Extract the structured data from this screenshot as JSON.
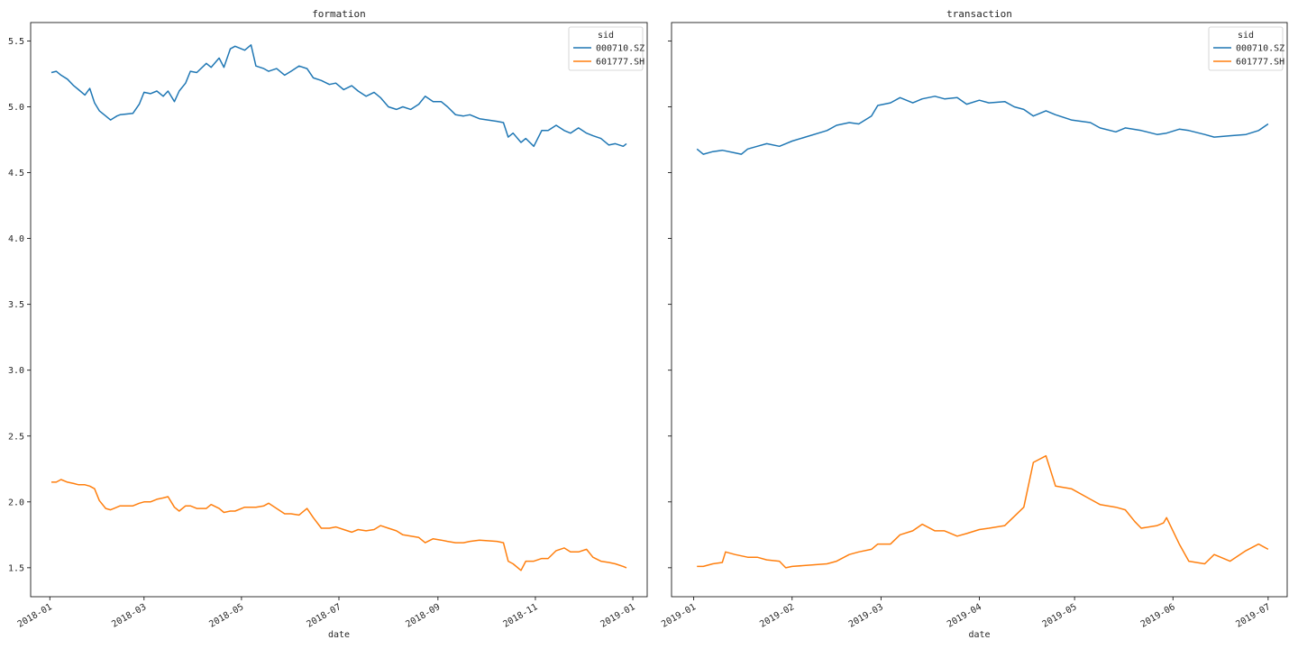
{
  "chart_data": [
    {
      "type": "line",
      "title": "formation",
      "xlabel": "date",
      "ylabel": "",
      "xlim": [
        "2017-12-20",
        "2019-01-10"
      ],
      "ylim": [
        1.28,
        5.64
      ],
      "xticks": [
        "2018-01",
        "2018-03",
        "2018-05",
        "2018-07",
        "2018-09",
        "2018-11",
        "2019-01"
      ],
      "yticks": [
        "1.5",
        "2.0",
        "2.5",
        "3.0",
        "3.5",
        "4.0",
        "4.5",
        "5.0",
        "5.5"
      ],
      "legend": {
        "title": "sid",
        "placement": "upper right"
      },
      "series": [
        {
          "name": "000710.SZ",
          "color": "#1f77b4",
          "x": [
            "2018-01-02",
            "2018-01-05",
            "2018-01-08",
            "2018-01-12",
            "2018-01-16",
            "2018-01-19",
            "2018-01-23",
            "2018-01-26",
            "2018-01-29",
            "2018-02-01",
            "2018-02-05",
            "2018-02-08",
            "2018-02-12",
            "2018-02-14",
            "2018-02-22",
            "2018-02-26",
            "2018-03-01",
            "2018-03-05",
            "2018-03-09",
            "2018-03-13",
            "2018-03-16",
            "2018-03-20",
            "2018-03-23",
            "2018-03-27",
            "2018-03-30",
            "2018-04-03",
            "2018-04-09",
            "2018-04-12",
            "2018-04-17",
            "2018-04-20",
            "2018-04-24",
            "2018-04-27",
            "2018-05-03",
            "2018-05-07",
            "2018-05-10",
            "2018-05-15",
            "2018-05-18",
            "2018-05-23",
            "2018-05-28",
            "2018-06-01",
            "2018-06-06",
            "2018-06-11",
            "2018-06-15",
            "2018-06-20",
            "2018-06-25",
            "2018-06-29",
            "2018-07-04",
            "2018-07-09",
            "2018-07-13",
            "2018-07-18",
            "2018-07-23",
            "2018-07-27",
            "2018-08-01",
            "2018-08-06",
            "2018-08-10",
            "2018-08-15",
            "2018-08-20",
            "2018-08-24",
            "2018-08-29",
            "2018-09-03",
            "2018-09-07",
            "2018-09-12",
            "2018-09-17",
            "2018-09-21",
            "2018-09-27",
            "2018-10-08",
            "2018-10-12",
            "2018-10-15",
            "2018-10-18",
            "2018-10-23",
            "2018-10-26",
            "2018-10-31",
            "2018-11-05",
            "2018-11-09",
            "2018-11-14",
            "2018-11-19",
            "2018-11-23",
            "2018-11-28",
            "2018-12-03",
            "2018-12-07",
            "2018-12-12",
            "2018-12-17",
            "2018-12-21",
            "2018-12-26",
            "2018-12-28"
          ],
          "y": [
            5.26,
            5.27,
            5.24,
            5.21,
            5.16,
            5.13,
            5.09,
            5.14,
            5.03,
            4.97,
            4.93,
            4.9,
            4.93,
            4.94,
            4.95,
            5.02,
            5.11,
            5.1,
            5.12,
            5.08,
            5.12,
            5.04,
            5.12,
            5.18,
            5.27,
            5.26,
            5.33,
            5.3,
            5.37,
            5.3,
            5.44,
            5.46,
            5.43,
            5.47,
            5.31,
            5.29,
            5.27,
            5.29,
            5.24,
            5.27,
            5.31,
            5.29,
            5.22,
            5.2,
            5.17,
            5.18,
            5.13,
            5.16,
            5.12,
            5.08,
            5.11,
            5.07,
            5.0,
            4.98,
            5.0,
            4.98,
            5.02,
            5.08,
            5.04,
            5.04,
            5.0,
            4.94,
            4.93,
            4.94,
            4.91,
            4.89,
            4.88,
            4.77,
            4.8,
            4.73,
            4.76,
            4.7,
            4.82,
            4.82,
            4.86,
            4.82,
            4.8,
            4.84,
            4.8,
            4.78,
            4.76,
            4.71,
            4.72,
            4.7,
            4.72
          ]
        },
        {
          "name": "601777.SH",
          "color": "#ff7f0e",
          "x": [
            "2018-01-02",
            "2018-01-05",
            "2018-01-08",
            "2018-01-12",
            "2018-01-16",
            "2018-01-19",
            "2018-01-23",
            "2018-01-26",
            "2018-01-29",
            "2018-02-01",
            "2018-02-05",
            "2018-02-08",
            "2018-02-12",
            "2018-02-14",
            "2018-02-22",
            "2018-02-26",
            "2018-03-01",
            "2018-03-05",
            "2018-03-09",
            "2018-03-13",
            "2018-03-16",
            "2018-03-20",
            "2018-03-23",
            "2018-03-27",
            "2018-03-30",
            "2018-04-03",
            "2018-04-09",
            "2018-04-12",
            "2018-04-17",
            "2018-04-20",
            "2018-04-24",
            "2018-04-27",
            "2018-05-03",
            "2018-05-07",
            "2018-05-10",
            "2018-05-15",
            "2018-05-18",
            "2018-05-23",
            "2018-05-28",
            "2018-06-01",
            "2018-06-06",
            "2018-06-11",
            "2018-06-15",
            "2018-06-20",
            "2018-06-25",
            "2018-06-29",
            "2018-07-04",
            "2018-07-09",
            "2018-07-13",
            "2018-07-18",
            "2018-07-23",
            "2018-07-27",
            "2018-08-01",
            "2018-08-06",
            "2018-08-10",
            "2018-08-15",
            "2018-08-20",
            "2018-08-24",
            "2018-08-29",
            "2018-09-03",
            "2018-09-07",
            "2018-09-12",
            "2018-09-17",
            "2018-09-21",
            "2018-09-27",
            "2018-10-08",
            "2018-10-12",
            "2018-10-15",
            "2018-10-18",
            "2018-10-23",
            "2018-10-26",
            "2018-10-31",
            "2018-11-05",
            "2018-11-09",
            "2018-11-14",
            "2018-11-19",
            "2018-11-23",
            "2018-11-28",
            "2018-12-03",
            "2018-12-07",
            "2018-12-12",
            "2018-12-17",
            "2018-12-21",
            "2018-12-26",
            "2018-12-28"
          ],
          "y": [
            2.15,
            2.15,
            2.17,
            2.15,
            2.14,
            2.13,
            2.13,
            2.12,
            2.1,
            2.01,
            1.95,
            1.94,
            1.96,
            1.97,
            1.97,
            1.99,
            2.0,
            2.0,
            2.02,
            2.03,
            2.04,
            1.96,
            1.93,
            1.97,
            1.97,
            1.95,
            1.95,
            1.98,
            1.95,
            1.92,
            1.93,
            1.93,
            1.96,
            1.96,
            1.96,
            1.97,
            1.99,
            1.95,
            1.91,
            1.91,
            1.9,
            1.95,
            1.88,
            1.8,
            1.8,
            1.81,
            1.79,
            1.77,
            1.79,
            1.78,
            1.79,
            1.82,
            1.8,
            1.78,
            1.75,
            1.74,
            1.73,
            1.69,
            1.72,
            1.71,
            1.7,
            1.69,
            1.69,
            1.7,
            1.71,
            1.7,
            1.69,
            1.55,
            1.53,
            1.48,
            1.55,
            1.55,
            1.57,
            1.57,
            1.63,
            1.65,
            1.62,
            1.62,
            1.64,
            1.58,
            1.55,
            1.54,
            1.53,
            1.51,
            1.5
          ]
        }
      ]
    },
    {
      "type": "line",
      "title": "transaction",
      "xlabel": "date",
      "ylabel": "",
      "xlim": [
        "2018-12-25",
        "2019-07-07"
      ],
      "ylim": [
        1.28,
        5.64
      ],
      "xticks": [
        "2019-01",
        "2019-02",
        "2019-03",
        "2019-04",
        "2019-05",
        "2019-06",
        "2019-07"
      ],
      "yticks": [],
      "legend": {
        "title": "sid",
        "placement": "upper right"
      },
      "series": [
        {
          "name": "000710.SZ",
          "color": "#1f77b4",
          "x": [
            "2019-01-02",
            "2019-01-04",
            "2019-01-07",
            "2019-01-10",
            "2019-01-14",
            "2019-01-16",
            "2019-01-18",
            "2019-01-21",
            "2019-01-24",
            "2019-01-28",
            "2019-01-30",
            "2019-02-01",
            "2019-02-12",
            "2019-02-15",
            "2019-02-19",
            "2019-02-22",
            "2019-02-26",
            "2019-02-28",
            "2019-03-04",
            "2019-03-07",
            "2019-03-11",
            "2019-03-14",
            "2019-03-18",
            "2019-03-21",
            "2019-03-25",
            "2019-03-28",
            "2019-04-01",
            "2019-04-04",
            "2019-04-09",
            "2019-04-12",
            "2019-04-15",
            "2019-04-18",
            "2019-04-22",
            "2019-04-25",
            "2019-04-30",
            "2019-05-06",
            "2019-05-09",
            "2019-05-14",
            "2019-05-17",
            "2019-05-22",
            "2019-05-27",
            "2019-05-30",
            "2019-06-03",
            "2019-06-06",
            "2019-06-11",
            "2019-06-14",
            "2019-06-19",
            "2019-06-24",
            "2019-06-28",
            "2019-07-01"
          ],
          "y": [
            4.68,
            4.64,
            4.66,
            4.67,
            4.65,
            4.64,
            4.68,
            4.7,
            4.72,
            4.7,
            4.72,
            4.74,
            4.82,
            4.86,
            4.88,
            4.87,
            4.93,
            5.01,
            5.03,
            5.07,
            5.03,
            5.06,
            5.08,
            5.06,
            5.07,
            5.02,
            5.05,
            5.03,
            5.04,
            5.0,
            4.98,
            4.93,
            4.97,
            4.94,
            4.9,
            4.88,
            4.84,
            4.81,
            4.84,
            4.82,
            4.79,
            4.8,
            4.83,
            4.82,
            4.79,
            4.77,
            4.78,
            4.79,
            4.82,
            4.87
          ]
        },
        {
          "name": "601777.SH",
          "color": "#ff7f0e",
          "x": [
            "2019-01-02",
            "2019-01-04",
            "2019-01-07",
            "2019-01-10",
            "2019-01-11",
            "2019-01-14",
            "2019-01-16",
            "2019-01-18",
            "2019-01-21",
            "2019-01-24",
            "2019-01-28",
            "2019-01-30",
            "2019-02-01",
            "2019-02-12",
            "2019-02-15",
            "2019-02-19",
            "2019-02-22",
            "2019-02-26",
            "2019-02-28",
            "2019-03-04",
            "2019-03-07",
            "2019-03-11",
            "2019-03-14",
            "2019-03-18",
            "2019-03-21",
            "2019-03-25",
            "2019-03-28",
            "2019-04-01",
            "2019-04-04",
            "2019-04-09",
            "2019-04-12",
            "2019-04-15",
            "2019-04-18",
            "2019-04-22",
            "2019-04-25",
            "2019-04-30",
            "2019-05-06",
            "2019-05-09",
            "2019-05-14",
            "2019-05-17",
            "2019-05-20",
            "2019-05-22",
            "2019-05-27",
            "2019-05-29",
            "2019-05-30",
            "2019-06-03",
            "2019-06-06",
            "2019-06-11",
            "2019-06-14",
            "2019-06-19",
            "2019-06-24",
            "2019-06-28",
            "2019-07-01"
          ],
          "y": [
            1.51,
            1.51,
            1.53,
            1.54,
            1.62,
            1.6,
            1.59,
            1.58,
            1.58,
            1.56,
            1.55,
            1.5,
            1.51,
            1.53,
            1.55,
            1.6,
            1.62,
            1.64,
            1.68,
            1.68,
            1.75,
            1.78,
            1.83,
            1.78,
            1.78,
            1.74,
            1.76,
            1.79,
            1.8,
            1.82,
            1.89,
            1.96,
            2.3,
            2.35,
            2.12,
            2.1,
            2.02,
            1.98,
            1.96,
            1.94,
            1.85,
            1.8,
            1.82,
            1.84,
            1.88,
            1.68,
            1.55,
            1.53,
            1.6,
            1.55,
            1.63,
            1.68,
            1.64
          ]
        }
      ]
    }
  ]
}
